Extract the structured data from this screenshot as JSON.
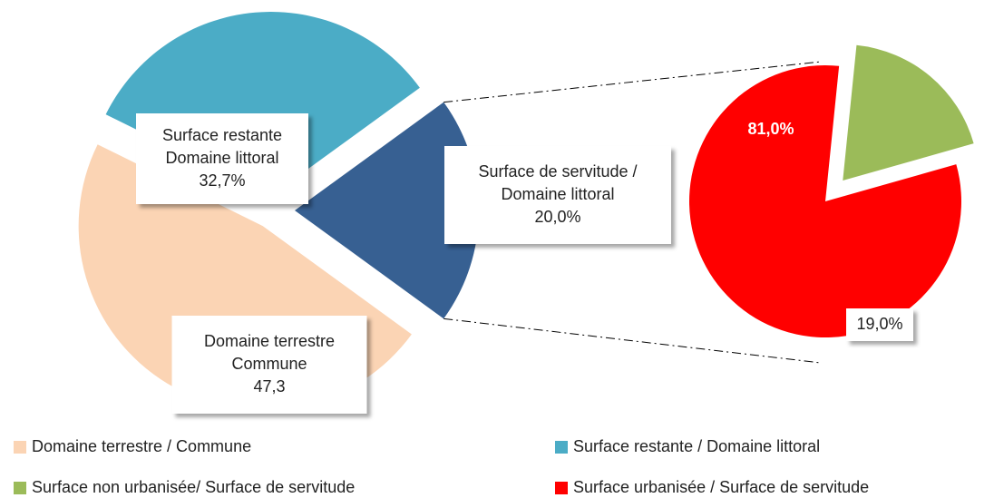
{
  "chart_data": {
    "type": "pie-of-pie",
    "main": [
      {
        "label_lines": [
          "Surface de servitude /",
          "Domaine littoral"
        ],
        "value": 20.0,
        "value_label": "20,0%",
        "color": "#376092"
      },
      {
        "label_lines": [
          "Surface restante",
          "Domaine littoral"
        ],
        "value": 32.7,
        "value_label": "32,7%",
        "color": "#4bacc6",
        "legend": "Surface restante / Domaine littoral"
      },
      {
        "label_lines": [
          "Domaine terrestre",
          "Commune"
        ],
        "value": 47.3,
        "value_label": "47,3",
        "color": "#fbd4b4",
        "legend": "Domaine terrestre / Commune"
      }
    ],
    "secondary": [
      {
        "value": 81.0,
        "value_label": "81,0%",
        "color": "#ff0000",
        "legend": "Surface urbanisée / Surface de servitude"
      },
      {
        "value": 19.0,
        "value_label": "19,0%",
        "color": "#9bbb59",
        "legend": "Surface non urbanisée/ Surface de servitude"
      }
    ]
  }
}
